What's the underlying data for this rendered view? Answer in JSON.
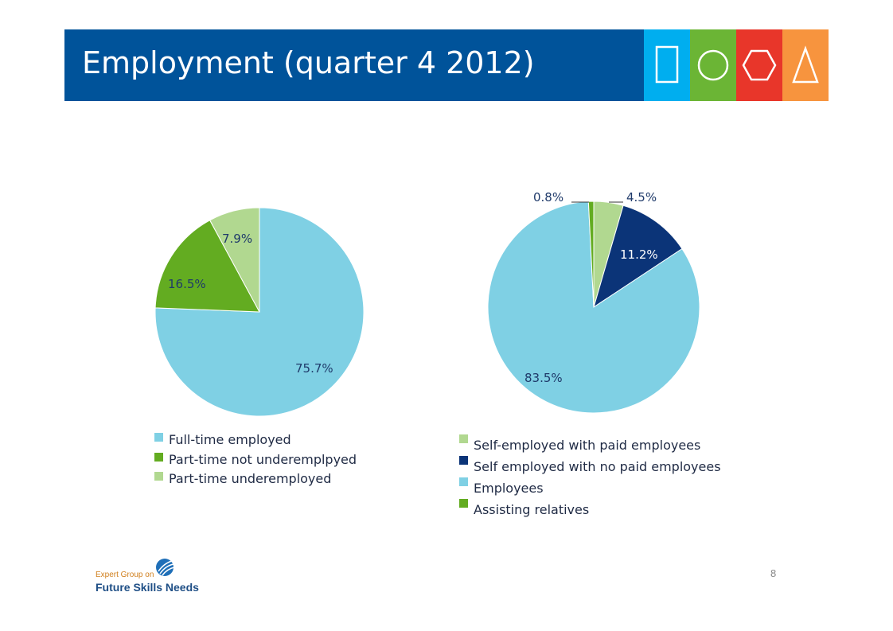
{
  "title": "Employment (quarter 4 2012)",
  "header_icons": [
    "square-icon",
    "circle-icon",
    "hexagon-icon",
    "triangle-icon"
  ],
  "chart_data": [
    {
      "type": "pie",
      "title": "",
      "slices": [
        {
          "label": "Full-time employed",
          "value": 75.7,
          "display": "75.7%",
          "color": "#7fd0e4"
        },
        {
          "label": "Part-time not underemplpyed",
          "value": 16.5,
          "display": "16.5%",
          "color": "#63ac21"
        },
        {
          "label": "Part-time underemployed",
          "value": 7.9,
          "display": "7.9%",
          "color": "#b1d890"
        }
      ],
      "legend_position": "bottom"
    },
    {
      "type": "pie",
      "title": "",
      "slices": [
        {
          "label": "Self-employed with paid employees",
          "value": 4.5,
          "display": "4.5%",
          "color": "#b1d890"
        },
        {
          "label": "Self employed with no paid employees",
          "value": 11.2,
          "display": "11.2%",
          "color": "#0b3478"
        },
        {
          "label": "Employees",
          "value": 83.5,
          "display": "83.5%",
          "color": "#7fd0e4"
        },
        {
          "label": "Assisting relatives",
          "value": 0.8,
          "display": "0.8%",
          "color": "#63ac21"
        }
      ],
      "legend_position": "bottom"
    }
  ],
  "page_number": "8",
  "logo": {
    "line1": "Expert Group on",
    "line2": "Future Skills Needs"
  }
}
